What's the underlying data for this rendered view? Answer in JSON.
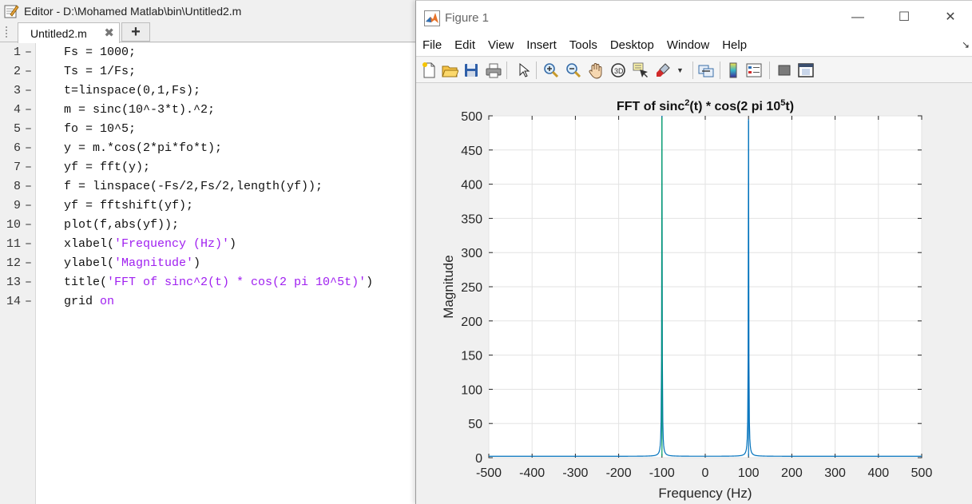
{
  "editor": {
    "title": "Editor - D:\\Mohamed Matlab\\bin\\Untitled2.m",
    "tab_label": "Untitled2.m",
    "tab_close": "✖",
    "new_tab": "+",
    "lines": [
      {
        "num": "1",
        "parts": [
          {
            "t": "Fs = 1000;"
          }
        ]
      },
      {
        "num": "2",
        "parts": [
          {
            "t": "Ts = 1/Fs;"
          }
        ]
      },
      {
        "num": "3",
        "parts": [
          {
            "t": "t=linspace(0,1,Fs);"
          }
        ]
      },
      {
        "num": "4",
        "parts": [
          {
            "t": "m = sinc(10^-3*t).^2;"
          }
        ]
      },
      {
        "num": "5",
        "parts": [
          {
            "t": "fo = 10^5;"
          }
        ]
      },
      {
        "num": "6",
        "parts": [
          {
            "t": "y = m.*cos(2*pi*fo*t);"
          }
        ]
      },
      {
        "num": "7",
        "parts": [
          {
            "t": "yf = fft(y);"
          }
        ]
      },
      {
        "num": "8",
        "parts": [
          {
            "t": "f = linspace(-Fs/2,Fs/2,length(yf));"
          }
        ]
      },
      {
        "num": "9",
        "parts": [
          {
            "t": "yf = fftshift(yf);"
          }
        ]
      },
      {
        "num": "10",
        "parts": [
          {
            "t": "plot(f,abs(yf));"
          }
        ]
      },
      {
        "num": "11",
        "parts": [
          {
            "t": "xlabel("
          },
          {
            "t": "'Frequency (Hz)'",
            "s": 1
          },
          {
            "t": ")"
          }
        ]
      },
      {
        "num": "12",
        "parts": [
          {
            "t": "ylabel("
          },
          {
            "t": "'Magnitude'",
            "s": 1
          },
          {
            "t": ")"
          }
        ]
      },
      {
        "num": "13",
        "parts": [
          {
            "t": "title("
          },
          {
            "t": "'FFT of sinc^2(t) * cos(2 pi 10^5t)'",
            "s": 1
          },
          {
            "t": ")"
          }
        ]
      },
      {
        "num": "14",
        "parts": [
          {
            "t": "grid "
          },
          {
            "t": "on",
            "s": 1
          }
        ]
      }
    ],
    "line_marker": "–"
  },
  "figure": {
    "title": "Figure 1",
    "window_buttons": {
      "minimize": "—",
      "maximize": "☐",
      "close": "✕"
    },
    "menus": [
      "File",
      "Edit",
      "View",
      "Insert",
      "Tools",
      "Desktop",
      "Window",
      "Help"
    ],
    "menu_dock": "↘",
    "toolbar_icons": [
      "new-figure-icon",
      "open-file-icon",
      "save-icon",
      "print-icon",
      "edit-plot-arrow-icon",
      "zoom-in-icon",
      "zoom-out-icon",
      "pan-hand-icon",
      "rotate-3d-icon",
      "data-cursor-icon",
      "brush-icon",
      "link-plot-icon",
      "colorbar-icon",
      "legend-icon",
      "hide-plot-tools-icon",
      "show-plot-tools-icon"
    ]
  },
  "chart_data": {
    "type": "line",
    "title": {
      "main": "FFT of sinc",
      "sup1": "2",
      "mid": "(t) * cos(2 pi 10",
      "sup2": "5",
      "end": "t)"
    },
    "xlabel": "Frequency (Hz)",
    "ylabel": "Magnitude",
    "xlim": [
      -500,
      500
    ],
    "ylim": [
      0,
      500
    ],
    "xticks": [
      -500,
      -400,
      -300,
      -200,
      -100,
      0,
      100,
      200,
      300,
      400,
      500
    ],
    "yticks": [
      0,
      50,
      100,
      150,
      200,
      250,
      300,
      350,
      400,
      450,
      500
    ],
    "grid": true,
    "series": [
      {
        "color": "#0072bd",
        "peaks": [
          {
            "x": -100,
            "y": 498
          },
          {
            "x": 100,
            "y": 493
          }
        ],
        "baseline": 2
      }
    ],
    "peak_color_left": "#00a060"
  }
}
